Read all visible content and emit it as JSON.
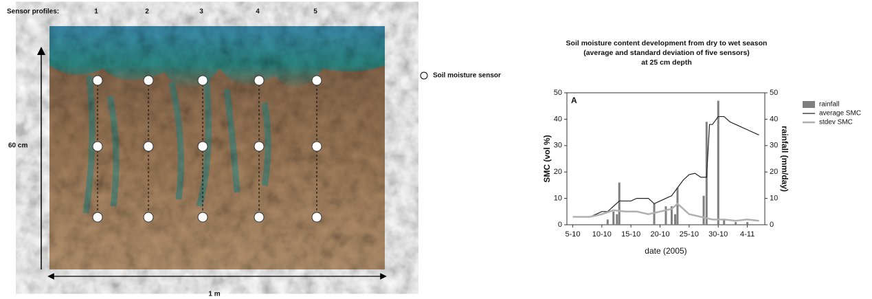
{
  "profile": {
    "heading": "Sensor profiles:",
    "profiles": [
      "1",
      "2",
      "3",
      "4",
      "5"
    ],
    "depth_label": "60 cm",
    "width_label": "1 m",
    "legend": "Soil moisture sensor"
  },
  "chart_data": {
    "type": "line",
    "title": [
      "Soil moisture content development from dry to wet season",
      "(average and standard deviation of five sensors)",
      "at 25 cm depth"
    ],
    "panel_label": "A",
    "x_label": "date (2005)",
    "y_label": "SMC (vol %)",
    "y2_label": "rainfall (mm/day)",
    "xlim": [
      4,
      38
    ],
    "xticks": [
      {
        "value": 5,
        "label": "5-10"
      },
      {
        "value": 10,
        "label": "10-10"
      },
      {
        "value": 15,
        "label": "15-10"
      },
      {
        "value": 20,
        "label": "20-10"
      },
      {
        "value": 25,
        "label": "25-10"
      },
      {
        "value": 30,
        "label": "30-10"
      },
      {
        "value": 35,
        "label": "4-11"
      }
    ],
    "ylim": [
      0,
      50
    ],
    "yticks": [
      0,
      10,
      20,
      30,
      40,
      50
    ],
    "y2lim": [
      0,
      50
    ],
    "y2ticks": [
      0,
      10,
      20,
      30,
      40,
      50
    ],
    "legend": "right",
    "series": [
      {
        "name": "rainfall",
        "type": "bar",
        "axis": "y2",
        "color": "#7f7f7f",
        "x": [
          11,
          12,
          12.6,
          13,
          19,
          21,
          22,
          22.6,
          23,
          27.5,
          28,
          30,
          31,
          33,
          35
        ],
        "values": [
          2,
          5,
          4,
          16,
          8,
          7,
          7,
          4,
          14,
          11,
          39,
          47,
          2,
          1,
          1
        ]
      },
      {
        "name": "average SMC",
        "color": "#222222",
        "x": [
          5,
          8,
          10,
          11,
          12,
          13,
          15,
          16,
          18,
          19,
          20,
          21,
          22,
          23,
          24,
          25,
          26,
          27,
          28,
          28.5,
          29,
          30,
          31,
          32,
          33,
          34,
          35,
          37
        ],
        "values": [
          3,
          3,
          5,
          5,
          7,
          9,
          9,
          10,
          10,
          8,
          9,
          10,
          11,
          14,
          17,
          19,
          19.5,
          18,
          18,
          38,
          38,
          41,
          41,
          39,
          38,
          37,
          36,
          34
        ]
      },
      {
        "name": "stdev SMC",
        "color": "#b0b0b0",
        "x": [
          5,
          8,
          10,
          12,
          14,
          16,
          18,
          20,
          22,
          23,
          24,
          25,
          27,
          29,
          31,
          33,
          35,
          37
        ],
        "values": [
          3,
          3,
          4,
          5.5,
          5,
          5,
          4,
          5,
          6,
          8,
          6,
          4,
          3,
          2,
          2,
          1.5,
          2,
          1.5
        ]
      }
    ]
  }
}
